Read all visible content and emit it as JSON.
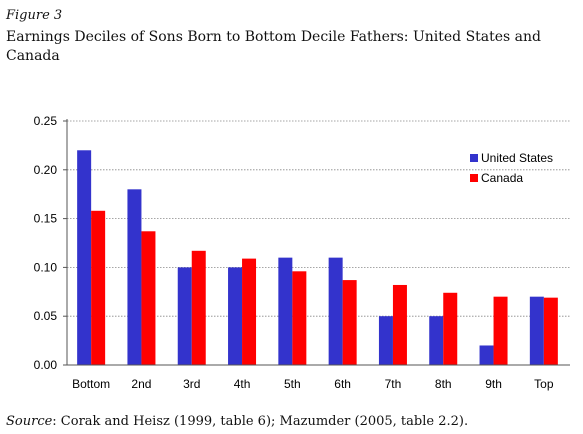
{
  "figure": {
    "label": "Figure 3",
    "title": "Earnings Deciles of Sons Born to Bottom Decile Fathers: United States and Canada",
    "source_prefix": "Source",
    "source_text": ": Corak and Heisz (1999, table 6); Mazumder (2005, table 2.2)."
  },
  "colors": {
    "united_states": "#3333cc",
    "canada": "#ff0000"
  },
  "chart_data": {
    "type": "bar",
    "categories": [
      "Bottom",
      "2nd",
      "3rd",
      "4th",
      "5th",
      "6th",
      "7th",
      "8th",
      "9th",
      "Top"
    ],
    "series": [
      {
        "name": "United States",
        "values": [
          0.22,
          0.18,
          0.1,
          0.1,
          0.11,
          0.11,
          0.05,
          0.05,
          0.02,
          0.07
        ]
      },
      {
        "name": "Canada",
        "values": [
          0.158,
          0.137,
          0.117,
          0.109,
          0.096,
          0.087,
          0.082,
          0.074,
          0.07,
          0.069
        ]
      }
    ],
    "yticks": [
      "0.00",
      "0.05",
      "0.10",
      "0.15",
      "0.20",
      "0.25"
    ],
    "ylim": [
      0,
      0.25
    ],
    "grid": true,
    "legend_position": "top-right"
  }
}
